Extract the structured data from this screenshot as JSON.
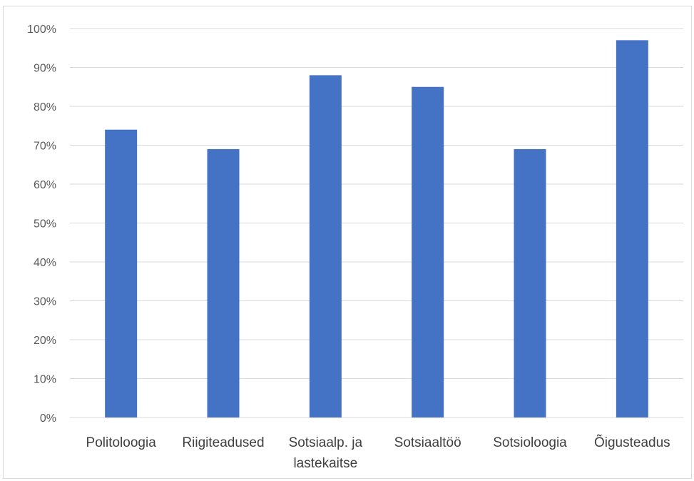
{
  "chart_data": {
    "type": "bar",
    "title": "",
    "xlabel": "",
    "ylabel": "",
    "categories": [
      [
        "Politoloogia"
      ],
      [
        "Riigiteadused"
      ],
      [
        "Sotsiaalp. ja",
        "lastekaitse"
      ],
      [
        "Sotsiaaltöö"
      ],
      [
        "Sotsioloogia"
      ],
      [
        "Õigusteadus"
      ]
    ],
    "values": [
      74,
      69,
      88,
      85,
      69,
      97
    ],
    "value_format": "percent",
    "ylim": [
      0,
      100
    ],
    "yticks": [
      "0%",
      "10%",
      "20%",
      "30%",
      "40%",
      "50%",
      "60%",
      "70%",
      "80%",
      "90%",
      "100%"
    ],
    "grid": true,
    "legend": "none",
    "colors": {
      "bar": "#4472c4",
      "grid": "#d9d9d9",
      "tick_text": "#595959",
      "category_text": "#404040"
    }
  }
}
